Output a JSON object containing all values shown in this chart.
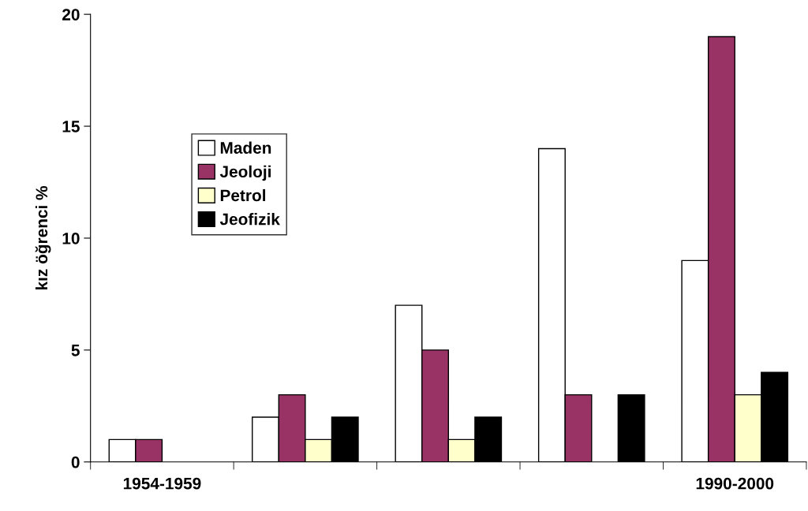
{
  "chart_data": {
    "type": "bar",
    "ylabel": "kız öğrenci %",
    "categories": [
      "1954-1959",
      null,
      null,
      null,
      "1990-2000"
    ],
    "series": [
      {
        "name": "Maden",
        "color": "#ffffff",
        "values": [
          1,
          2,
          7,
          14,
          9
        ]
      },
      {
        "name": "Jeoloji",
        "color": "#993366",
        "values": [
          1,
          3,
          5,
          3,
          19
        ]
      },
      {
        "name": "Petrol",
        "color": "#ffffcc",
        "values": [
          null,
          1,
          1,
          null,
          3
        ]
      },
      {
        "name": "Jeofizik",
        "color": "#000000",
        "values": [
          null,
          2,
          2,
          3,
          4
        ]
      }
    ],
    "ylim": [
      0,
      20
    ],
    "yticks": [
      0,
      5,
      10,
      15,
      20
    ],
    "grid": false,
    "legend": "left"
  }
}
